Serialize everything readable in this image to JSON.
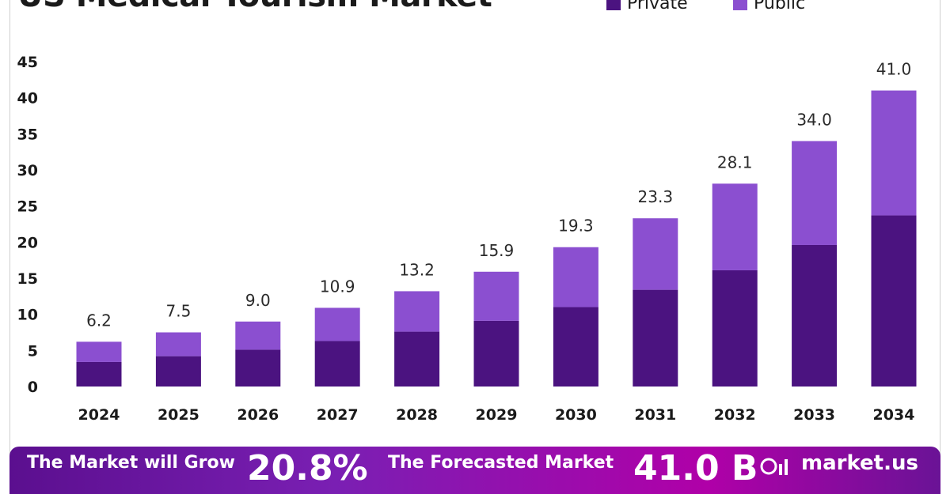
{
  "chart_data": {
    "type": "bar",
    "stacked": true,
    "title": "US Medical Tourism Market",
    "categories": [
      "2024",
      "2025",
      "2026",
      "2027",
      "2028",
      "2029",
      "2030",
      "2031",
      "2032",
      "2033",
      "2034"
    ],
    "series": [
      {
        "name": "Private",
        "color": "#4b1380",
        "values": [
          3.4,
          4.2,
          5.1,
          6.3,
          7.6,
          9.1,
          11.0,
          13.4,
          16.1,
          19.6,
          23.7
        ]
      },
      {
        "name": "Public",
        "color": "#8b4fd0",
        "values": [
          2.8,
          3.3,
          3.9,
          4.6,
          5.6,
          6.8,
          8.3,
          9.9,
          12.0,
          14.4,
          17.3
        ]
      }
    ],
    "totals": [
      "6.2",
      "7.5",
      "9.0",
      "10.9",
      "13.2",
      "15.9",
      "19.3",
      "23.3",
      "28.1",
      "34.0",
      "41.0"
    ],
    "yticks": [
      0,
      5,
      10,
      15,
      20,
      25,
      30,
      35,
      40,
      45
    ],
    "ylim": [
      0,
      45
    ],
    "xlabel": "",
    "ylabel": "",
    "grid": false,
    "legend_position": "top-right"
  },
  "banner": {
    "grow_text": "The Market will Grow",
    "cagr_value": "20.8%",
    "forecast_text": "The Forecasted Market",
    "forecast_value": "41.0 B",
    "brand": "market.us",
    "logo_icon": "bar-logo-icon"
  }
}
